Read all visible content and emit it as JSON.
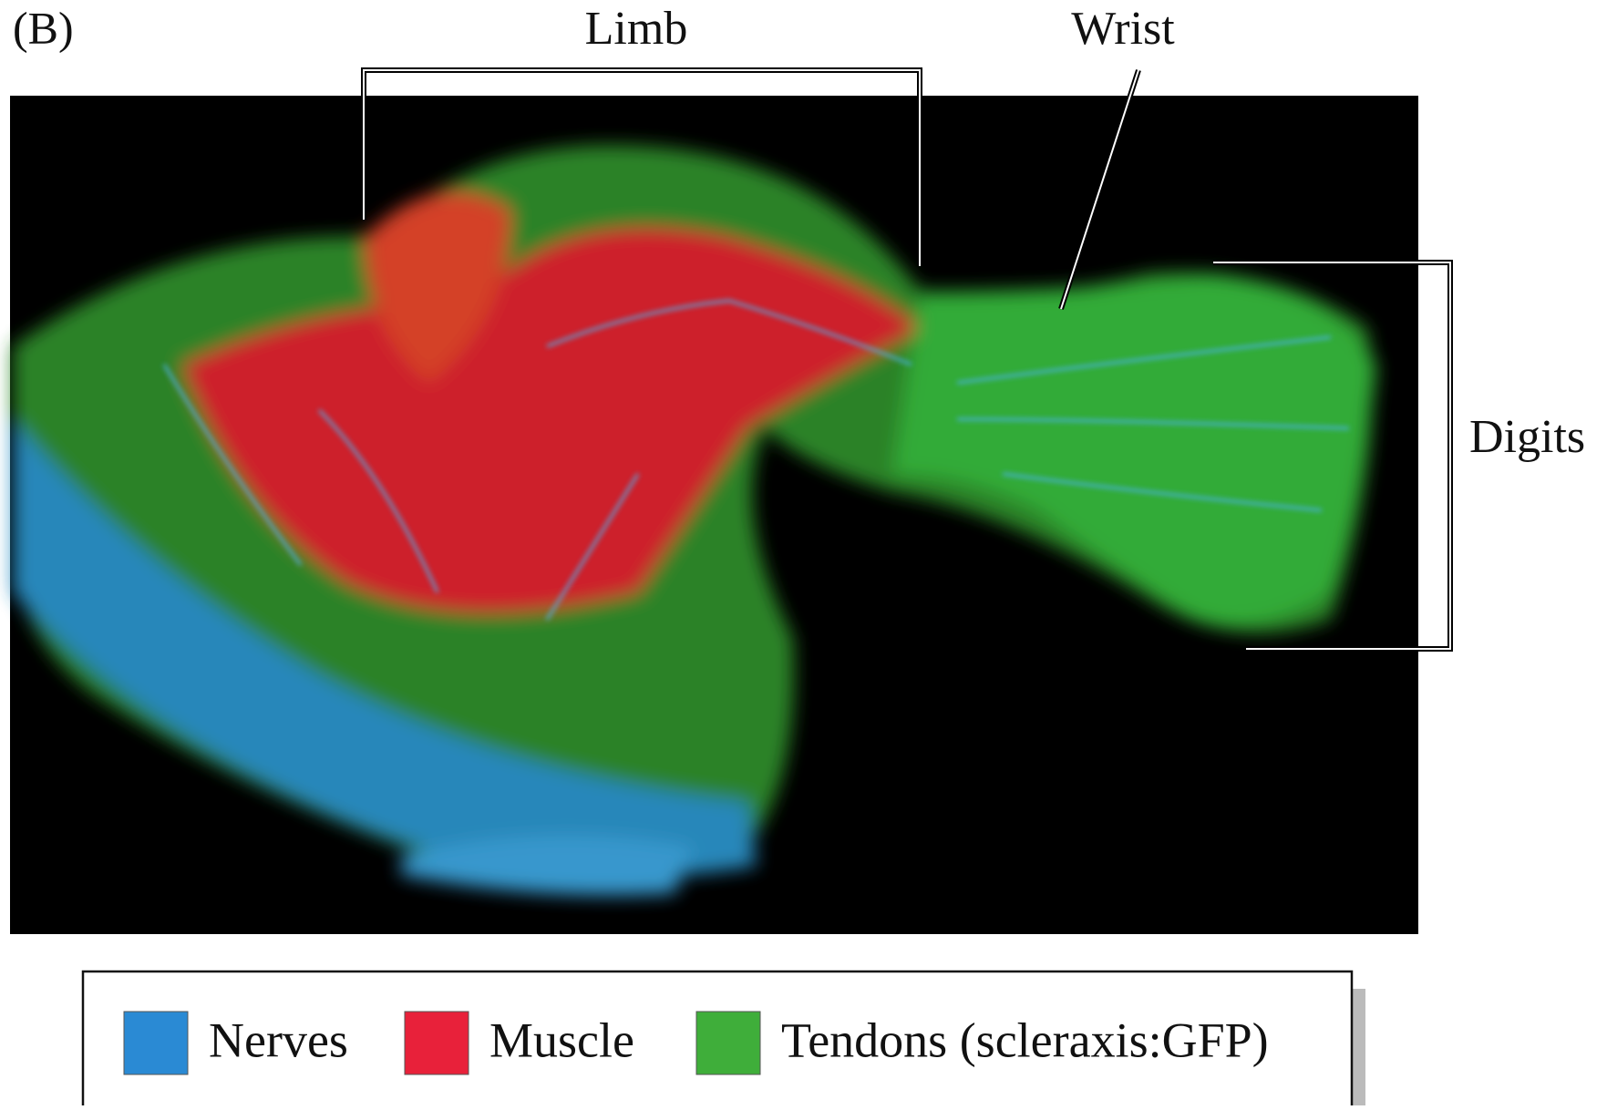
{
  "panel_label": "(B)",
  "labels": {
    "limb": "Limb",
    "wrist": "Wrist",
    "digits": "Digits"
  },
  "legend": [
    {
      "name": "Nerves",
      "color": "#2a8ad4"
    },
    {
      "name": "Muscle",
      "color": "#e8213a"
    },
    {
      "name": "Tendons (scleraxis:GFP)",
      "color": "#3fae3a"
    }
  ]
}
